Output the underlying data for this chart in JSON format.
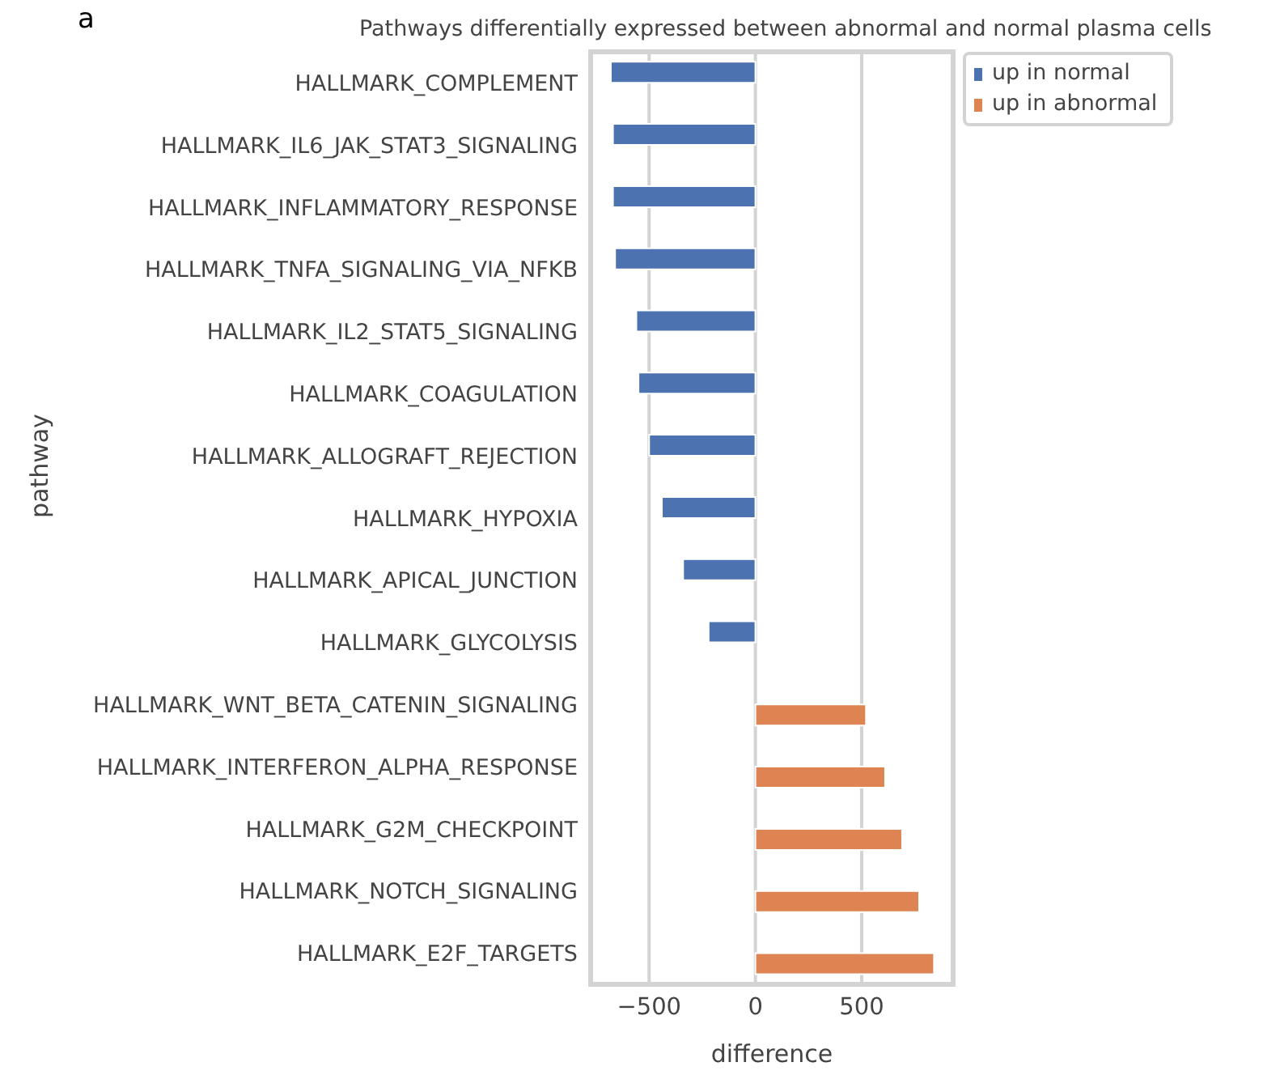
{
  "chart_data": {
    "type": "bar",
    "orientation": "horizontal",
    "title": "Pathways differentially expressed between abnormal and normal plasma cells",
    "xlabel": "difference",
    "ylabel": "pathway",
    "annotations": [
      "a"
    ],
    "categories": [
      "HALLMARK_COMPLEMENT",
      "HALLMARK_IL6_JAK_STAT3_SIGNALING",
      "HALLMARK_INFLAMMATORY_RESPONSE",
      "HALLMARK_TNFA_SIGNALING_VIA_NFKB",
      "HALLMARK_IL2_STAT5_SIGNALING",
      "HALLMARK_COAGULATION",
      "HALLMARK_ALLOGRAFT_REJECTION",
      "HALLMARK_HYPOXIA",
      "HALLMARK_APICAL_JUNCTION",
      "HALLMARK_GLYCOLYSIS",
      "HALLMARK_WNT_BETA_CATENIN_SIGNALING",
      "HALLMARK_INTERFERON_ALPHA_RESPONSE",
      "HALLMARK_G2M_CHECKPOINT",
      "HALLMARK_NOTCH_SIGNALING",
      "HALLMARK_E2F_TARGETS"
    ],
    "series": [
      {
        "name": "up in normal",
        "color": "#4c72b0",
        "values": [
          -680,
          -670,
          -670,
          -660,
          -560,
          -550,
          -500,
          -440,
          -340,
          -220,
          null,
          null,
          null,
          null,
          null
        ]
      },
      {
        "name": "up in abnormal",
        "color": "#dd8452",
        "values": [
          null,
          null,
          null,
          null,
          null,
          null,
          null,
          null,
          null,
          null,
          520,
          610,
          690,
          770,
          840
        ]
      }
    ],
    "xlim": [
      -775,
      930
    ],
    "xticks": [
      {
        "value": -500,
        "label": "−500"
      },
      0,
      500
    ],
    "grid": "x",
    "legend": "top right"
  }
}
